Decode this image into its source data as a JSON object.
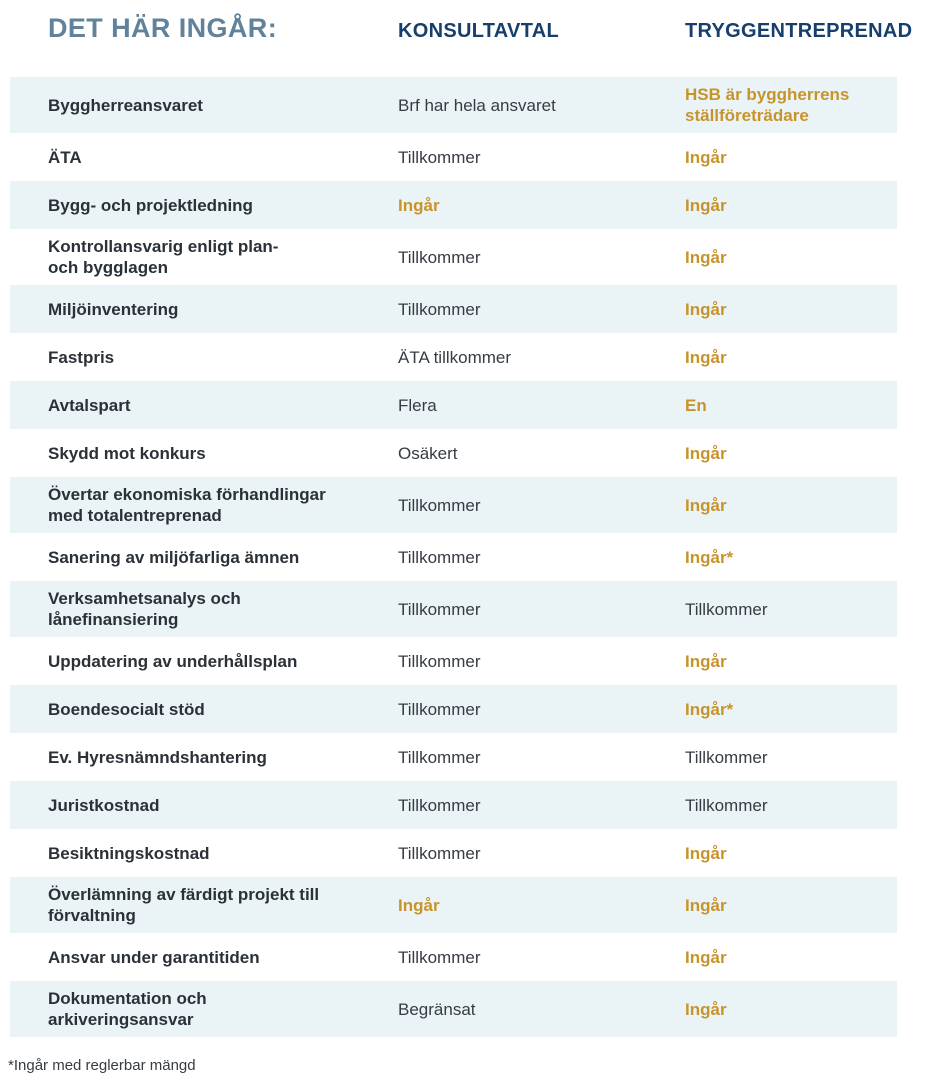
{
  "header": {
    "title": "DET HÄR INGÅR:",
    "col_konsultavtal": "KONSULTAVTAL",
    "col_tryggentreprenad": "TRYGGENTREPRENAD"
  },
  "rows": [
    {
      "label": "Byggherreansvaret",
      "konsultavtal": {
        "text": "Brf har hela ansvaret",
        "gold": false
      },
      "tryggentreprenad": {
        "text": "HSB är byggherrens\nställföreträdare",
        "gold": true
      }
    },
    {
      "label": "ÄTA",
      "konsultavtal": {
        "text": "Tillkommer",
        "gold": false
      },
      "tryggentreprenad": {
        "text": "Ingår",
        "gold": true
      }
    },
    {
      "label": "Bygg- och projektledning",
      "konsultavtal": {
        "text": "Ingår",
        "gold": true
      },
      "tryggentreprenad": {
        "text": "Ingår",
        "gold": true
      }
    },
    {
      "label": "Kontrollansvarig enligt plan-\noch bygglagen",
      "konsultavtal": {
        "text": "Tillkommer",
        "gold": false
      },
      "tryggentreprenad": {
        "text": "Ingår",
        "gold": true
      }
    },
    {
      "label": "Miljöinventering",
      "konsultavtal": {
        "text": "Tillkommer",
        "gold": false
      },
      "tryggentreprenad": {
        "text": "Ingår",
        "gold": true
      }
    },
    {
      "label": "Fastpris",
      "konsultavtal": {
        "text": "ÄTA tillkommer",
        "gold": false
      },
      "tryggentreprenad": {
        "text": "Ingår",
        "gold": true
      }
    },
    {
      "label": "Avtalspart",
      "konsultavtal": {
        "text": "Flera",
        "gold": false
      },
      "tryggentreprenad": {
        "text": "En",
        "gold": true
      }
    },
    {
      "label": "Skydd mot konkurs",
      "konsultavtal": {
        "text": "Osäkert",
        "gold": false
      },
      "tryggentreprenad": {
        "text": "Ingår",
        "gold": true
      }
    },
    {
      "label": "Övertar ekonomiska förhandlingar\nmed totalentreprenad",
      "konsultavtal": {
        "text": "Tillkommer",
        "gold": false
      },
      "tryggentreprenad": {
        "text": "Ingår",
        "gold": true
      }
    },
    {
      "label": "Sanering av miljöfarliga ämnen",
      "konsultavtal": {
        "text": "Tillkommer",
        "gold": false
      },
      "tryggentreprenad": {
        "text": "Ingår*",
        "gold": true
      }
    },
    {
      "label": "Verksamhetsanalys och\nlånefinansiering",
      "konsultavtal": {
        "text": "Tillkommer",
        "gold": false
      },
      "tryggentreprenad": {
        "text": "Tillkommer",
        "gold": false
      }
    },
    {
      "label": "Uppdatering av underhållsplan",
      "konsultavtal": {
        "text": "Tillkommer",
        "gold": false
      },
      "tryggentreprenad": {
        "text": "Ingår",
        "gold": true
      }
    },
    {
      "label": "Boendesocialt stöd",
      "konsultavtal": {
        "text": "Tillkommer",
        "gold": false
      },
      "tryggentreprenad": {
        "text": "Ingår*",
        "gold": true
      }
    },
    {
      "label": "Ev. Hyresnämndshantering",
      "konsultavtal": {
        "text": "Tillkommer",
        "gold": false
      },
      "tryggentreprenad": {
        "text": "Tillkommer",
        "gold": false
      }
    },
    {
      "label": "Juristkostnad",
      "konsultavtal": {
        "text": "Tillkommer",
        "gold": false
      },
      "tryggentreprenad": {
        "text": "Tillkommer",
        "gold": false
      }
    },
    {
      "label": "Besiktningskostnad",
      "konsultavtal": {
        "text": "Tillkommer",
        "gold": false
      },
      "tryggentreprenad": {
        "text": "Ingår",
        "gold": true
      }
    },
    {
      "label": "Överlämning av färdigt projekt till\nförvaltning",
      "konsultavtal": {
        "text": "Ingår",
        "gold": true
      },
      "tryggentreprenad": {
        "text": "Ingår",
        "gold": true
      }
    },
    {
      "label": "Ansvar under garantitiden",
      "konsultavtal": {
        "text": "Tillkommer",
        "gold": false
      },
      "tryggentreprenad": {
        "text": "Ingår",
        "gold": true
      }
    },
    {
      "label": "Dokumentation och\narkiveringsansvar",
      "konsultavtal": {
        "text": "Begränsat",
        "gold": false
      },
      "tryggentreprenad": {
        "text": "Ingår",
        "gold": true
      }
    }
  ],
  "footnote": "*Ingår med reglerbar mängd",
  "colors": {
    "title_slate": "#60829b",
    "header_navy": "#173f6d",
    "accent_gold": "#c7942c",
    "label_dark": "#2b3138",
    "value_dark": "#363c43",
    "row_bg": "#eaf4f7"
  }
}
